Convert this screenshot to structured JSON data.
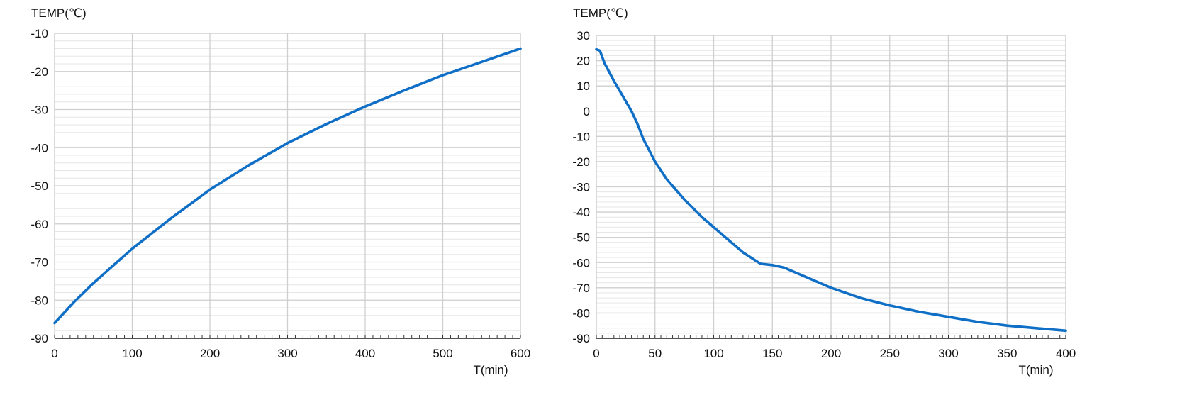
{
  "chart_data": [
    {
      "type": "line",
      "ylabel": "TEMP(℃)",
      "xlabel": "T(min)",
      "xlim": [
        0,
        600
      ],
      "ylim": [
        -90,
        -10
      ],
      "xticks": [
        0,
        100,
        200,
        300,
        400,
        500,
        600
      ],
      "yticks": [
        -10,
        -20,
        -30,
        -40,
        -50,
        -60,
        -70,
        -80,
        -90
      ],
      "grid": true,
      "series": [
        {
          "color": "#0f6fc6",
          "x": [
            0,
            25,
            50,
            75,
            100,
            150,
            200,
            250,
            300,
            350,
            400,
            450,
            500,
            550,
            600
          ],
          "y": [
            -86,
            -80.5,
            -75.5,
            -71,
            -66.5,
            -58.5,
            -51,
            -44.6,
            -38.8,
            -33.8,
            -29.2,
            -25,
            -21,
            -17.5,
            -14
          ]
        }
      ]
    },
    {
      "type": "line",
      "ylabel": "TEMP(℃)",
      "xlabel": "T(min)",
      "xlim": [
        0,
        400
      ],
      "ylim": [
        -90,
        30
      ],
      "xticks": [
        0,
        50,
        100,
        150,
        200,
        250,
        300,
        350,
        400
      ],
      "yticks": [
        30,
        20,
        10,
        0,
        -10,
        -20,
        -30,
        -40,
        -50,
        -60,
        -70,
        -80,
        -90
      ],
      "grid": true,
      "series": [
        {
          "color": "#0f6fc6",
          "x": [
            0,
            3,
            7,
            15,
            25,
            30,
            35,
            40,
            50,
            60,
            75,
            90,
            100,
            110,
            125,
            140,
            150,
            160,
            175,
            200,
            225,
            250,
            275,
            300,
            325,
            350,
            375,
            400
          ],
          "y": [
            24.5,
            24,
            19,
            12,
            4,
            0,
            -5,
            -11,
            -20,
            -27,
            -35,
            -42,
            -46,
            -50,
            -56,
            -60.5,
            -61,
            -62,
            -65,
            -70,
            -74,
            -77,
            -79.5,
            -81.5,
            -83.5,
            -85,
            -86,
            -87
          ]
        }
      ]
    }
  ]
}
